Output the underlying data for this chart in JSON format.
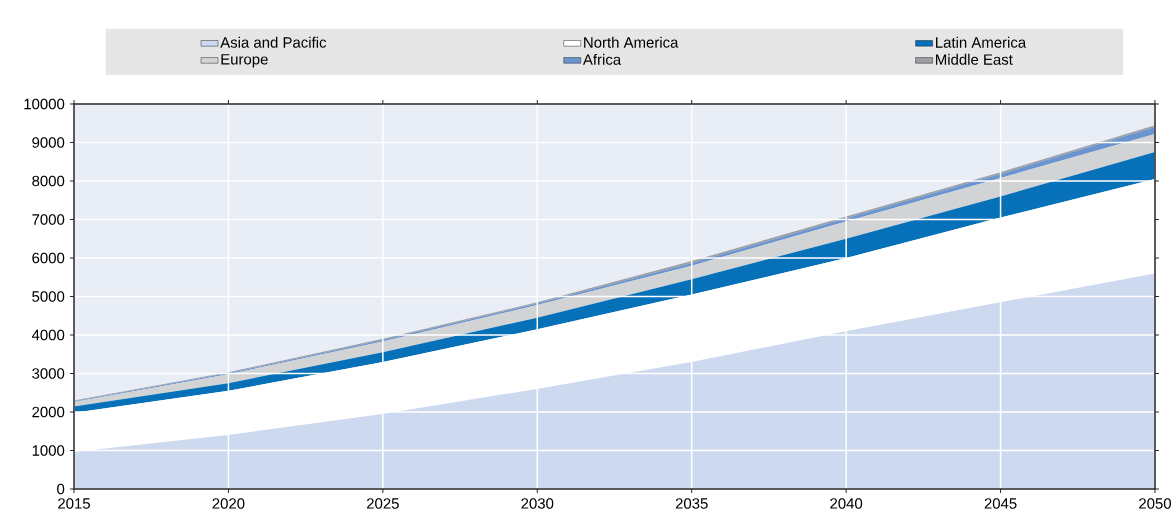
{
  "chart_data": {
    "type": "area",
    "stacked": true,
    "x": [
      2015,
      2020,
      2025,
      2030,
      2035,
      2040,
      2045,
      2050
    ],
    "series": [
      {
        "name": "Asia and Pacific",
        "color": "#ccd9ef",
        "values": [
          960,
          1400,
          1950,
          2600,
          3300,
          4100,
          4850,
          5600
        ]
      },
      {
        "name": "North America",
        "color": "#ffffff",
        "values": [
          1020,
          1150,
          1350,
          1550,
          1750,
          1900,
          2200,
          2450
        ]
      },
      {
        "name": "Latin America",
        "color": "#0670b8",
        "values": [
          160,
          200,
          250,
          300,
          400,
          500,
          550,
          700
        ]
      },
      {
        "name": "Europe",
        "color": "#d1d3d4",
        "values": [
          120,
          230,
          280,
          330,
          350,
          450,
          480,
          470
        ]
      },
      {
        "name": "Africa",
        "color": "#6a95d0",
        "values": [
          20,
          30,
          40,
          40,
          70,
          80,
          100,
          180
        ]
      },
      {
        "name": "Middle East",
        "color": "#9d9fa2",
        "values": [
          20,
          20,
          30,
          30,
          50,
          50,
          50,
          50
        ]
      }
    ],
    "xlim": [
      2015,
      2050
    ],
    "xticks": [
      2015,
      2020,
      2025,
      2030,
      2035,
      2040,
      2045,
      2050
    ],
    "ylim": [
      0,
      10000
    ],
    "yticks": [
      0,
      1000,
      2000,
      3000,
      4000,
      5000,
      6000,
      7000,
      8000,
      9000,
      10000
    ],
    "grid": true,
    "legend": "top"
  }
}
